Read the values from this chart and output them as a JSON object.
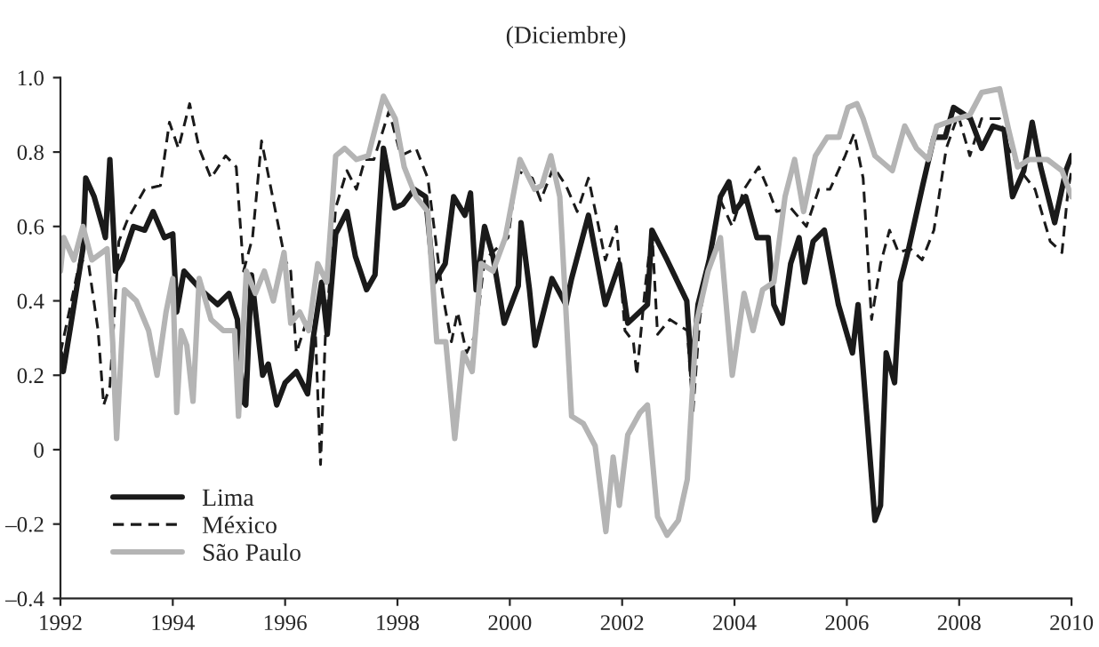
{
  "chart_data": {
    "type": "line",
    "title": "(Diciembre)",
    "xlim": [
      1992,
      2010
    ],
    "xticks": [
      1992,
      1994,
      1996,
      1998,
      2000,
      2002,
      2004,
      2006,
      2008,
      2010
    ],
    "ylim": [
      -0.4,
      1.0
    ],
    "yticks": [
      {
        "value": -0.4,
        "label": "–0.4"
      },
      {
        "value": -0.2,
        "label": "–0.2"
      },
      {
        "value": 0,
        "label": "0"
      },
      {
        "value": 0.2,
        "label": "0.2"
      },
      {
        "value": 0.4,
        "label": "0.4"
      },
      {
        "value": 0.6,
        "label": "0.6"
      },
      {
        "value": 0.8,
        "label": "0.8"
      },
      {
        "value": 1.0,
        "label": "1.0"
      }
    ],
    "grid": false,
    "legend": "bottom left",
    "series": [
      {
        "name": "Lima",
        "color": "#1a1a1a",
        "line_style": "solid",
        "x": [
          1992.0,
          1992.05,
          1992.2,
          1992.4,
          1992.45,
          1992.6,
          1992.75,
          1992.8,
          1992.88,
          1992.98,
          1993.1,
          1993.3,
          1993.5,
          1993.65,
          1993.85,
          1994.0,
          1994.07,
          1994.2,
          1994.5,
          1994.8,
          1995.0,
          1995.15,
          1995.25,
          1995.3,
          1995.4,
          1995.6,
          1995.7,
          1995.85,
          1996.0,
          1996.2,
          1996.4,
          1996.5,
          1996.65,
          1996.75,
          1996.9,
          1997.1,
          1997.25,
          1997.45,
          1997.6,
          1997.75,
          1997.95,
          1998.1,
          1998.3,
          1998.5,
          1998.65,
          1998.85,
          1999.0,
          1999.2,
          1999.3,
          1999.4,
          1999.55,
          1999.7,
          1999.9,
          2000.05,
          2000.15,
          2000.2,
          2000.35,
          2000.45,
          2000.75,
          2001.0,
          2001.1,
          2001.4,
          2001.7,
          2001.95,
          2002.1,
          2002.45,
          2002.53,
          2002.8,
          2003.15,
          2003.24,
          2003.35,
          2003.55,
          2003.75,
          2003.9,
          2004.0,
          2004.2,
          2004.4,
          2004.6,
          2004.7,
          2004.85,
          2005.0,
          2005.15,
          2005.25,
          2005.4,
          2005.6,
          2005.85,
          2006.1,
          2006.2,
          2006.35,
          2006.5,
          2006.6,
          2006.7,
          2006.85,
          2006.95,
          2007.1,
          2007.35,
          2007.55,
          2007.75,
          2007.9,
          2008.2,
          2008.4,
          2008.6,
          2008.8,
          2008.95,
          2009.15,
          2009.3,
          2009.45,
          2009.7,
          2009.9,
          2010.0
        ],
        "values": [
          0.26,
          0.21,
          0.35,
          0.54,
          0.73,
          0.68,
          0.6,
          0.57,
          0.78,
          0.48,
          0.51,
          0.6,
          0.59,
          0.64,
          0.57,
          0.58,
          0.37,
          0.48,
          0.43,
          0.39,
          0.42,
          0.35,
          0.13,
          0.12,
          0.47,
          0.2,
          0.23,
          0.12,
          0.18,
          0.21,
          0.15,
          0.3,
          0.45,
          0.31,
          0.58,
          0.64,
          0.52,
          0.43,
          0.47,
          0.81,
          0.65,
          0.66,
          0.7,
          0.68,
          0.45,
          0.5,
          0.68,
          0.63,
          0.69,
          0.43,
          0.6,
          0.52,
          0.34,
          0.4,
          0.44,
          0.61,
          0.43,
          0.28,
          0.46,
          0.39,
          0.46,
          0.63,
          0.39,
          0.5,
          0.34,
          0.39,
          0.59,
          0.51,
          0.4,
          0.2,
          0.39,
          0.51,
          0.68,
          0.72,
          0.64,
          0.68,
          0.57,
          0.57,
          0.39,
          0.34,
          0.5,
          0.57,
          0.45,
          0.56,
          0.59,
          0.39,
          0.26,
          0.39,
          0.1,
          -0.19,
          -0.15,
          0.26,
          0.18,
          0.45,
          0.54,
          0.71,
          0.84,
          0.84,
          0.92,
          0.89,
          0.81,
          0.87,
          0.86,
          0.68,
          0.75,
          0.88,
          0.76,
          0.61,
          0.75,
          0.79
        ]
      },
      {
        "name": "México",
        "color": "#1a1a1a",
        "line_style": "dashed",
        "x": [
          1992.0,
          1992.35,
          1992.5,
          1992.67,
          1992.77,
          1992.88,
          1993.04,
          1993.2,
          1993.5,
          1993.78,
          1993.94,
          1994.1,
          1994.3,
          1994.47,
          1994.68,
          1994.94,
          1995.13,
          1995.26,
          1995.42,
          1995.58,
          1995.79,
          1996.0,
          1996.1,
          1996.2,
          1996.37,
          1996.53,
          1996.63,
          1996.72,
          1996.9,
          1997.1,
          1997.27,
          1997.42,
          1997.58,
          1997.85,
          1998.06,
          1998.33,
          1998.54,
          1998.7,
          1998.8,
          1998.96,
          1999.07,
          1999.23,
          1999.39,
          1999.55,
          1999.76,
          1999.97,
          2000.13,
          2000.4,
          2000.55,
          2000.78,
          2001.0,
          2001.2,
          2001.4,
          2001.58,
          2001.7,
          2001.9,
          2002.05,
          2002.2,
          2002.26,
          2002.42,
          2002.53,
          2002.63,
          2002.85,
          2003.16,
          2003.26,
          2003.38,
          2003.53,
          2003.75,
          2003.96,
          2004.17,
          2004.43,
          2004.6,
          2004.75,
          2005.0,
          2005.28,
          2005.5,
          2005.7,
          2005.97,
          2006.13,
          2006.29,
          2006.44,
          2006.6,
          2006.76,
          2006.92,
          2007.13,
          2007.34,
          2007.55,
          2007.77,
          2007.98,
          2008.19,
          2008.4,
          2008.72,
          2008.88,
          2009.09,
          2009.35,
          2009.62,
          2009.83,
          2009.94,
          2010.0
        ],
        "values": [
          0.26,
          0.51,
          0.5,
          0.32,
          0.12,
          0.17,
          0.56,
          0.62,
          0.7,
          0.71,
          0.88,
          0.81,
          0.93,
          0.81,
          0.73,
          0.79,
          0.76,
          0.48,
          0.57,
          0.83,
          0.67,
          0.51,
          0.48,
          0.26,
          0.34,
          0.35,
          -0.04,
          0.32,
          0.65,
          0.75,
          0.7,
          0.78,
          0.78,
          0.91,
          0.79,
          0.81,
          0.73,
          0.54,
          0.42,
          0.29,
          0.37,
          0.26,
          0.31,
          0.51,
          0.54,
          0.57,
          0.75,
          0.73,
          0.67,
          0.76,
          0.71,
          0.64,
          0.73,
          0.6,
          0.51,
          0.6,
          0.32,
          0.29,
          0.2,
          0.45,
          0.59,
          0.31,
          0.35,
          0.32,
          0.1,
          0.35,
          0.51,
          0.67,
          0.6,
          0.7,
          0.76,
          0.7,
          0.64,
          0.65,
          0.6,
          0.7,
          0.7,
          0.79,
          0.85,
          0.73,
          0.35,
          0.5,
          0.59,
          0.53,
          0.54,
          0.51,
          0.59,
          0.81,
          0.9,
          0.79,
          0.89,
          0.89,
          0.81,
          0.75,
          0.7,
          0.56,
          0.53,
          0.7,
          0.75
        ]
      },
      {
        "name": "São Paulo",
        "color": "#b4b4b4",
        "line_style": "solid",
        "x": [
          1992.0,
          1992.06,
          1992.24,
          1992.4,
          1992.56,
          1992.83,
          1992.93,
          1993.0,
          1993.14,
          1993.35,
          1993.57,
          1993.72,
          1993.88,
          1994.0,
          1994.07,
          1994.15,
          1994.25,
          1994.36,
          1994.47,
          1994.68,
          1994.9,
          1995.1,
          1995.17,
          1995.31,
          1995.47,
          1995.63,
          1995.79,
          1995.98,
          1996.1,
          1996.26,
          1996.42,
          1996.58,
          1996.74,
          1996.9,
          1997.06,
          1997.27,
          1997.48,
          1997.75,
          1997.96,
          1998.12,
          1998.33,
          1998.54,
          1998.7,
          1998.86,
          1999.02,
          1999.17,
          1999.33,
          1999.49,
          1999.7,
          1999.92,
          2000.18,
          2000.44,
          2000.57,
          2000.73,
          2000.89,
          2001.1,
          2001.31,
          2001.52,
          2001.71,
          2001.84,
          2001.95,
          2002.1,
          2002.32,
          2002.45,
          2002.63,
          2002.8,
          2003.0,
          2003.16,
          2003.32,
          2003.53,
          2003.75,
          2003.96,
          2004.17,
          2004.33,
          2004.5,
          2004.7,
          2004.9,
          2005.07,
          2005.23,
          2005.44,
          2005.65,
          2005.86,
          2006.02,
          2006.18,
          2006.29,
          2006.5,
          2006.81,
          2007.03,
          2007.24,
          2007.45,
          2007.6,
          2007.98,
          2008.19,
          2008.4,
          2008.72,
          2008.88,
          2009.04,
          2009.25,
          2009.57,
          2009.83,
          2010.0
        ],
        "values": [
          0.48,
          0.57,
          0.51,
          0.6,
          0.51,
          0.54,
          0.29,
          0.03,
          0.43,
          0.4,
          0.32,
          0.2,
          0.37,
          0.46,
          0.1,
          0.32,
          0.28,
          0.13,
          0.46,
          0.35,
          0.32,
          0.32,
          0.09,
          0.48,
          0.42,
          0.48,
          0.4,
          0.53,
          0.34,
          0.37,
          0.32,
          0.5,
          0.45,
          0.79,
          0.81,
          0.78,
          0.79,
          0.95,
          0.89,
          0.76,
          0.68,
          0.64,
          0.29,
          0.29,
          0.03,
          0.26,
          0.21,
          0.5,
          0.48,
          0.57,
          0.78,
          0.7,
          0.71,
          0.79,
          0.68,
          0.09,
          0.07,
          0.01,
          -0.22,
          -0.02,
          -0.15,
          0.04,
          0.1,
          0.12,
          -0.18,
          -0.23,
          -0.19,
          -0.08,
          0.34,
          0.48,
          0.57,
          0.2,
          0.42,
          0.32,
          0.43,
          0.45,
          0.68,
          0.78,
          0.64,
          0.79,
          0.84,
          0.84,
          0.92,
          0.93,
          0.89,
          0.79,
          0.75,
          0.87,
          0.81,
          0.78,
          0.87,
          0.89,
          0.9,
          0.96,
          0.97,
          0.86,
          0.76,
          0.78,
          0.78,
          0.75,
          0.68
        ]
      }
    ]
  }
}
